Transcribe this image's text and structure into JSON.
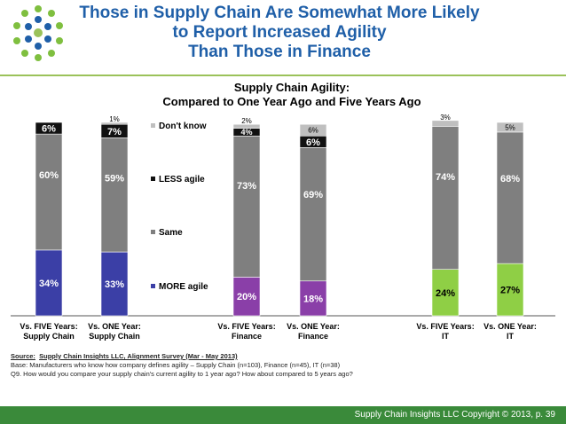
{
  "slide": {
    "title_lines": [
      "Those in Supply Chain Are Somewhat More Likely",
      "to Report Increased Agility",
      "Than Those in Finance"
    ],
    "footer": "Supply Chain Insights LLC Copyright © 2013, p. 39"
  },
  "source": {
    "label": "Source:",
    "name": "Supply Chain Insights LLC, Alignment Survey  (Mar - May 2013)",
    "base": "Base:  Manufacturers who know how company defines agility – Supply Chain (n=103), Finance (n=45), IT (n=38)",
    "question": "Q9. How would you compare your supply chain's current agility to 1 year ago? How about compared to 5 years ago?"
  },
  "colors": {
    "title": "#1f5fa8",
    "supply_chain": "#3b3fa6",
    "finance": "#8a3fa8",
    "it": "#8fcf45",
    "same": "#7f7f7f",
    "less": "#111111",
    "dont_know": "#bfbfbf",
    "footer": "#3a8a3a"
  },
  "chart_data": {
    "type": "bar",
    "stacked": true,
    "title": "Supply Chain Agility:",
    "subtitle": "Compared to One Year Ago and Five Years Ago",
    "categories": [
      [
        "Vs. FIVE Years:",
        "Supply Chain"
      ],
      [
        "Vs. ONE Year:",
        "Supply Chain"
      ],
      [
        "Vs. FIVE Years:",
        "Finance"
      ],
      [
        "Vs. ONE Year:",
        "Finance"
      ],
      [
        "Vs. FIVE Years:",
        "IT"
      ],
      [
        "Vs. ONE Year:",
        "IT"
      ]
    ],
    "series": [
      {
        "name": "MORE agile",
        "values": [
          34,
          33,
          20,
          18,
          24,
          27
        ],
        "labels": [
          "34%",
          "33%",
          "20%",
          "18%",
          "24%",
          "27%"
        ]
      },
      {
        "name": "Same",
        "values": [
          60,
          59,
          73,
          69,
          74,
          68
        ],
        "labels": [
          "60%",
          "59%",
          "73%",
          "69%",
          "74%",
          "68%"
        ]
      },
      {
        "name": "LESS agile",
        "values": [
          6,
          7,
          4,
          6,
          0,
          0
        ],
        "labels": [
          "6%",
          "7%",
          "4%",
          "6%",
          "",
          ""
        ]
      },
      {
        "name": "Don't know",
        "values": [
          0,
          1,
          2,
          6,
          3,
          5
        ],
        "labels": [
          "",
          "1%",
          "2%",
          "6%",
          "3%",
          "5%"
        ]
      }
    ],
    "legend": [
      "Don't know",
      "LESS agile",
      "Same",
      "MORE agile"
    ],
    "ylim": [
      0,
      100
    ],
    "grid": false,
    "legend_position": "center"
  }
}
